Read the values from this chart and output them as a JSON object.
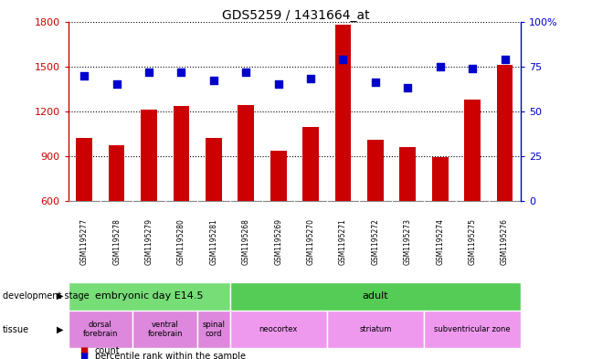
{
  "title": "GDS5259 / 1431664_at",
  "samples": [
    "GSM1195277",
    "GSM1195278",
    "GSM1195279",
    "GSM1195280",
    "GSM1195281",
    "GSM1195268",
    "GSM1195269",
    "GSM1195270",
    "GSM1195271",
    "GSM1195272",
    "GSM1195273",
    "GSM1195274",
    "GSM1195275",
    "GSM1195276"
  ],
  "counts": [
    1020,
    975,
    1210,
    1235,
    1020,
    1240,
    935,
    1095,
    1780,
    1010,
    960,
    895,
    1280,
    1510
  ],
  "percentiles": [
    70,
    65,
    72,
    72,
    67,
    72,
    65,
    68,
    79,
    66,
    63,
    75,
    74,
    79
  ],
  "ylim_left": [
    600,
    1800
  ],
  "ylim_right": [
    0,
    100
  ],
  "yticks_left": [
    600,
    900,
    1200,
    1500,
    1800
  ],
  "yticks_right": [
    0,
    25,
    50,
    75,
    100
  ],
  "bar_color": "#cc0000",
  "dot_color": "#0000cc",
  "background_color": "#ffffff",
  "development_stage_groups": [
    {
      "label": "embryonic day E14.5",
      "start": 0,
      "end": 4,
      "color": "#77dd77"
    },
    {
      "label": "adult",
      "start": 5,
      "end": 13,
      "color": "#55cc55"
    }
  ],
  "tissue_groups": [
    {
      "label": "dorsal\nforebrain",
      "start": 0,
      "end": 1,
      "color": "#dd88dd"
    },
    {
      "label": "ventral\nforebrain",
      "start": 2,
      "end": 3,
      "color": "#dd88dd"
    },
    {
      "label": "spinal\ncord",
      "start": 4,
      "end": 4,
      "color": "#dd88dd"
    },
    {
      "label": "neocortex",
      "start": 5,
      "end": 7,
      "color": "#ee99ee"
    },
    {
      "label": "striatum",
      "start": 8,
      "end": 10,
      "color": "#ee99ee"
    },
    {
      "label": "subventricular zone",
      "start": 11,
      "end": 13,
      "color": "#ee99ee"
    }
  ],
  "left_axis_color": "#cc0000",
  "right_axis_color": "#0000cc",
  "bar_width": 0.5,
  "dot_size": 40,
  "sample_bg_color": "#bbbbbb"
}
